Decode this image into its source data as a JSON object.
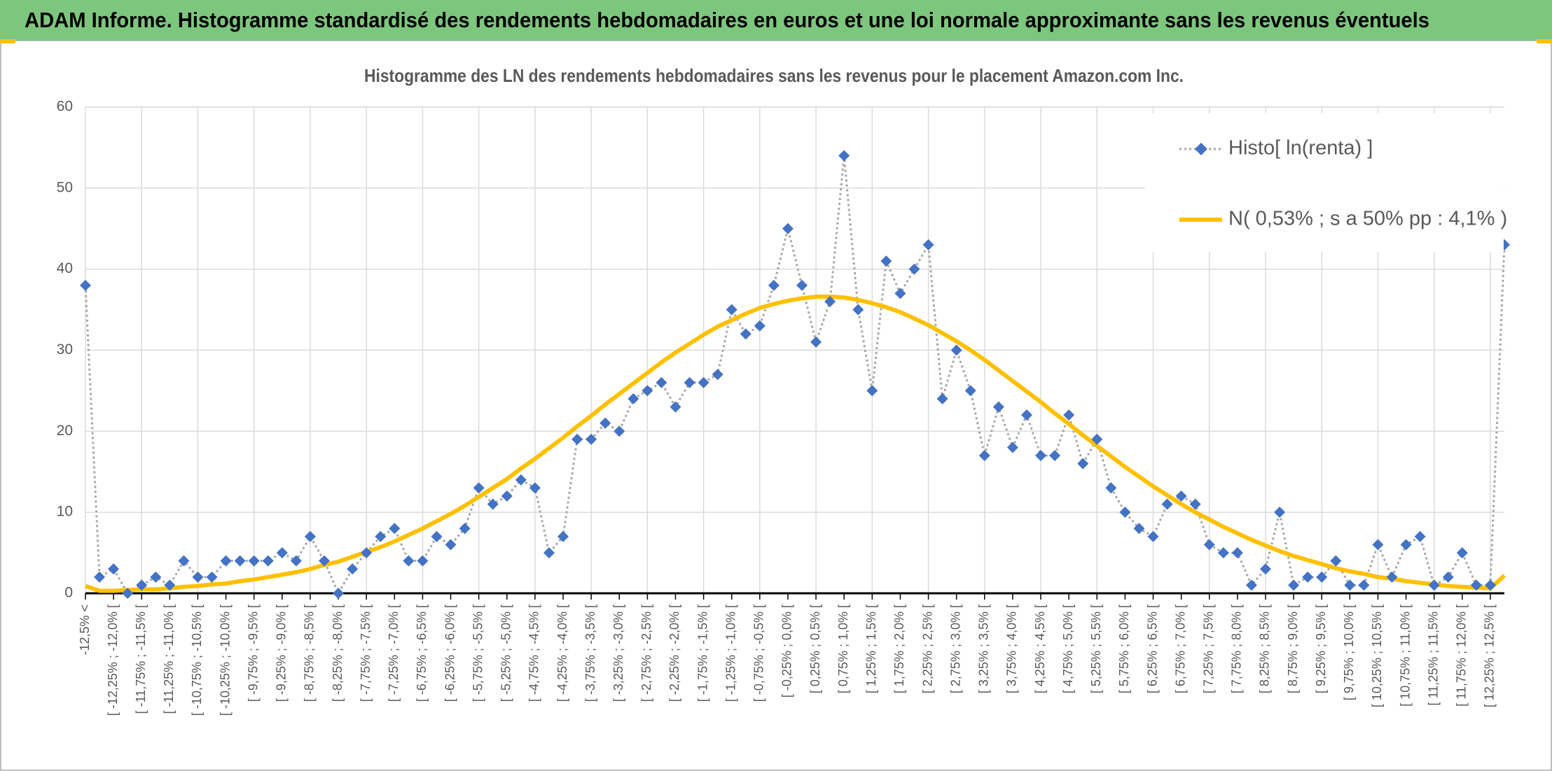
{
  "header": {
    "title": "ADAM Informe. Histogramme standardisé des rendements hebdomadaires en euros et une loi normale approximante sans les revenus éventuels"
  },
  "chart_data": {
    "type": "line",
    "title": "Histogramme des LN des rendements hebdomadaires sans les revenus pour le placement Amazon.com Inc.",
    "categories": [
      "-12,5% <",
      null,
      "[ -12,25% ; -12,0% [",
      null,
      "[ -11,75% ; -11,5% [",
      null,
      "[ -11,25% ; -11,0% [",
      null,
      "[ -10,75% ; -10,5% [",
      null,
      "[ -10,25% ; -10,0% [",
      null,
      "[ -9,75% ; -9,5% [",
      null,
      "[ -9,25% ; -9,0% [",
      null,
      "[ -8,75% ; -8,5% [",
      null,
      "[ -8,25% ; -8,0% [",
      null,
      "[ -7,75% ; -7,5% [",
      null,
      "[ -7,25% ; -7,0% [",
      null,
      "[ -6,75% ; -6,5% [",
      null,
      "[ -6,25% ; -6,0% [",
      null,
      "[ -5,75% ; -5,5% [",
      null,
      "[ -5,25% ; -5,0% [",
      null,
      "[ -4,75% ; -4,5% [",
      null,
      "[ -4,25% ; -4,0% [",
      null,
      "[ -3,75% ; -3,5% [",
      null,
      "[ -3,25% ; -3,0% [",
      null,
      "[ -2,75% ; -2,5% [",
      null,
      "[ -2,25% ; -2,0% [",
      null,
      "[ -1,75% ; -1,5% [",
      null,
      "[ -1,25% ; -1,0% [",
      null,
      "[ -0,75% ; -0,5% [",
      null,
      "[ -0,25% ; 0,0% [",
      null,
      "[ 0,25% ; 0,5% [",
      null,
      "[ 0,75% ; 1,0% [",
      null,
      "[ 1,25% ; 1,5% [",
      null,
      "[ 1,75% ; 2,0% [",
      null,
      "[ 2,25% ; 2,5% [",
      null,
      "[ 2,75% ; 3,0% [",
      null,
      "[ 3,25% ; 3,5% [",
      null,
      "[ 3,75% ; 4,0% [",
      null,
      "[ 4,25% ; 4,5% [",
      null,
      "[ 4,75% ; 5,0% [",
      null,
      "[ 5,25% ; 5,5% [",
      null,
      "[ 5,75% ; 6,0% [",
      null,
      "[ 6,25% ; 6,5% [",
      null,
      "[ 6,75% ; 7,0% [",
      null,
      "[ 7,25% ; 7,5% [",
      null,
      "[ 7,75% ; 8,0% [",
      null,
      "[ 8,25% ; 8,5% [",
      null,
      "[ 8,75% ; 9,0% [",
      null,
      "[ 9,25% ; 9,5% [",
      null,
      "[ 9,75% ; 10,0% [",
      null,
      "[ 10,25% ; 10,5% [",
      null,
      "[ 10,75% ; 11,0% [",
      null,
      "[ 11,25% ; 11,5% [",
      null,
      "[ 11,75% ; 12,0% [",
      null,
      "[ 12,25% ; 12,5% [",
      null
    ],
    "series": [
      {
        "name": "Histo[ ln(renta) ]",
        "color": "#4472c4",
        "line_color": "#a6a6a6",
        "line_style": "dotted",
        "marker": "diamond",
        "values": [
          38,
          2,
          3,
          0,
          1,
          2,
          1,
          4,
          2,
          2,
          4,
          4,
          4,
          4,
          5,
          4,
          7,
          4,
          0,
          3,
          5,
          7,
          8,
          4,
          4,
          7,
          6,
          8,
          13,
          11,
          12,
          14,
          13,
          5,
          7,
          19,
          19,
          21,
          20,
          24,
          25,
          26,
          23,
          26,
          26,
          27,
          35,
          32,
          33,
          38,
          45,
          38,
          31,
          36,
          54,
          35,
          25,
          41,
          37,
          40,
          43,
          24,
          30,
          25,
          17,
          23,
          18,
          22,
          17,
          17,
          22,
          16,
          19,
          13,
          10,
          8,
          7,
          11,
          12,
          11,
          6,
          5,
          5,
          1,
          3,
          10,
          1,
          2,
          2,
          4,
          1,
          1,
          6,
          2,
          6,
          7,
          1,
          2,
          5,
          1,
          1,
          43
        ]
      },
      {
        "name": "N( 0,53% ; s a 50% pp : 4,1% )",
        "color": "#ffc000",
        "line_style": "solid",
        "marker": "none",
        "values": [
          0.9,
          0.3,
          0.3,
          0.4,
          0.5,
          0.5,
          0.6,
          0.8,
          0.9,
          1.1,
          1.2,
          1.5,
          1.7,
          2.0,
          2.3,
          2.6,
          3.0,
          3.5,
          3.9,
          4.5,
          5.1,
          5.7,
          6.4,
          7.2,
          8.0,
          8.9,
          9.8,
          10.8,
          11.9,
          13.0,
          14.1,
          15.4,
          16.6,
          17.9,
          19.2,
          20.6,
          21.9,
          23.3,
          24.6,
          25.9,
          27.2,
          28.5,
          29.7,
          30.8,
          31.9,
          32.9,
          33.7,
          34.5,
          35.2,
          35.7,
          36.1,
          36.4,
          36.6,
          36.6,
          36.5,
          36.2,
          35.8,
          35.3,
          34.7,
          33.9,
          33.1,
          32.1,
          31.1,
          30.0,
          28.8,
          27.5,
          26.2,
          24.9,
          23.6,
          22.2,
          20.9,
          19.5,
          18.2,
          16.9,
          15.6,
          14.4,
          13.2,
          12.1,
          11.0,
          10.0,
          9.1,
          8.2,
          7.4,
          6.6,
          5.9,
          5.2,
          4.6,
          4.1,
          3.6,
          3.1,
          2.7,
          2.4,
          2.0,
          1.8,
          1.5,
          1.3,
          1.1,
          0.9,
          0.8,
          0.7,
          0.6,
          2.2
        ]
      }
    ],
    "ylim": [
      0,
      60
    ],
    "yticks": [
      0,
      10,
      20,
      30,
      40,
      50,
      60
    ],
    "grid": true,
    "legend": "upper right"
  }
}
